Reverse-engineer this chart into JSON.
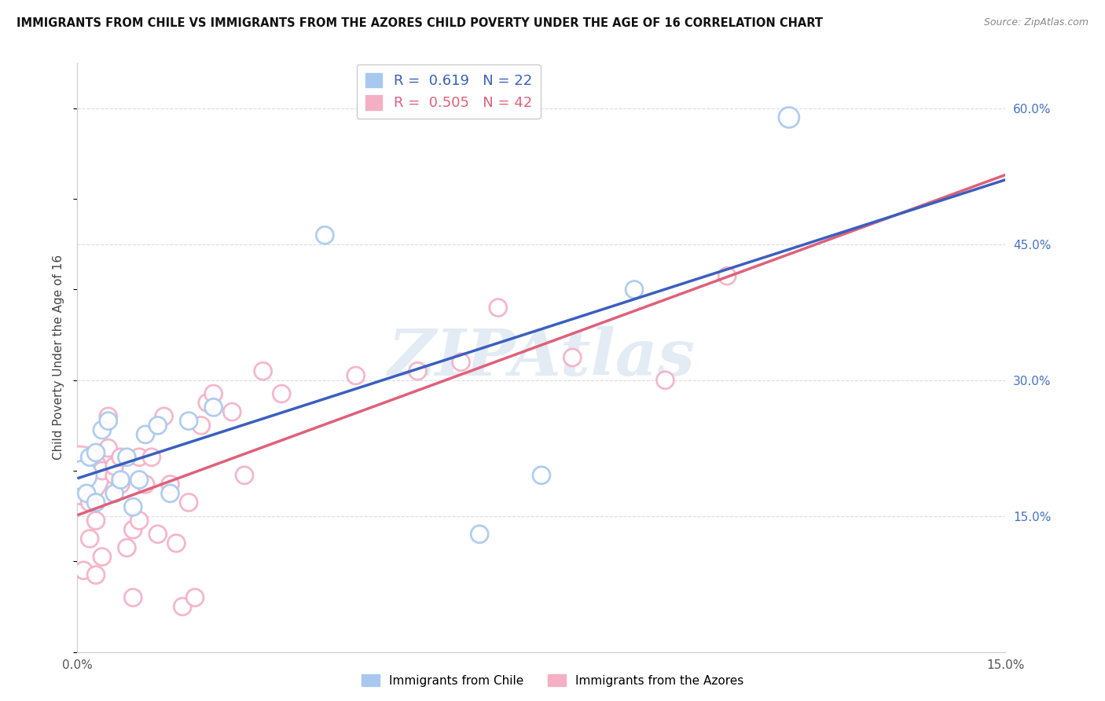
{
  "title": "IMMIGRANTS FROM CHILE VS IMMIGRANTS FROM THE AZORES CHILD POVERTY UNDER THE AGE OF 16 CORRELATION CHART",
  "source": "Source: ZipAtlas.com",
  "ylabel": "Child Poverty Under the Age of 16",
  "xlim": [
    0.0,
    0.15
  ],
  "ylim": [
    0.0,
    0.65
  ],
  "xtick_positions": [
    0.0,
    0.05,
    0.1,
    0.15
  ],
  "xticklabels": [
    "0.0%",
    "",
    "",
    "15.0%"
  ],
  "yticks_right": [
    0.0,
    0.15,
    0.3,
    0.45,
    0.6
  ],
  "yticklabels_right": [
    "",
    "15.0%",
    "30.0%",
    "45.0%",
    "60.0%"
  ],
  "chile_R": 0.619,
  "chile_N": 22,
  "azores_R": 0.505,
  "azores_N": 42,
  "chile_color": "#a8c8f0",
  "azores_color": "#f4afc5",
  "chile_edge_color": "#7baad4",
  "azores_edge_color": "#e888a8",
  "trendline_chile_color": "#3a5fbe",
  "trendline_azores_color": "#e0607a",
  "watermark_color": "#c8d8ec",
  "watermark": "ZIPAtlas",
  "chile_x": [
    0.0008,
    0.0015,
    0.002,
    0.003,
    0.003,
    0.004,
    0.005,
    0.006,
    0.007,
    0.008,
    0.009,
    0.01,
    0.011,
    0.013,
    0.015,
    0.018,
    0.022,
    0.04,
    0.065,
    0.075,
    0.09,
    0.115
  ],
  "chile_y": [
    0.195,
    0.175,
    0.215,
    0.165,
    0.22,
    0.245,
    0.255,
    0.175,
    0.19,
    0.215,
    0.16,
    0.19,
    0.24,
    0.25,
    0.175,
    0.255,
    0.27,
    0.46,
    0.13,
    0.195,
    0.4,
    0.59
  ],
  "chile_size": [
    700,
    250,
    250,
    250,
    250,
    250,
    250,
    250,
    250,
    250,
    250,
    250,
    250,
    250,
    250,
    250,
    250,
    250,
    250,
    250,
    250,
    350
  ],
  "azores_x": [
    0.0004,
    0.001,
    0.002,
    0.002,
    0.003,
    0.003,
    0.004,
    0.004,
    0.005,
    0.005,
    0.006,
    0.006,
    0.007,
    0.007,
    0.008,
    0.009,
    0.009,
    0.01,
    0.01,
    0.011,
    0.012,
    0.013,
    0.014,
    0.015,
    0.016,
    0.017,
    0.018,
    0.019,
    0.02,
    0.021,
    0.022,
    0.025,
    0.027,
    0.03,
    0.033,
    0.045,
    0.055,
    0.062,
    0.068,
    0.08,
    0.095,
    0.105
  ],
  "azores_y": [
    0.195,
    0.09,
    0.125,
    0.165,
    0.085,
    0.145,
    0.105,
    0.2,
    0.225,
    0.26,
    0.195,
    0.205,
    0.185,
    0.215,
    0.115,
    0.06,
    0.135,
    0.145,
    0.215,
    0.185,
    0.215,
    0.13,
    0.26,
    0.185,
    0.12,
    0.05,
    0.165,
    0.06,
    0.25,
    0.275,
    0.285,
    0.265,
    0.195,
    0.31,
    0.285,
    0.305,
    0.31,
    0.32,
    0.38,
    0.325,
    0.3,
    0.415
  ],
  "azores_size": [
    2800,
    250,
    250,
    250,
    250,
    250,
    250,
    250,
    250,
    250,
    250,
    250,
    250,
    250,
    250,
    250,
    250,
    250,
    250,
    250,
    250,
    250,
    250,
    250,
    250,
    250,
    250,
    250,
    250,
    250,
    250,
    250,
    250,
    250,
    250,
    250,
    250,
    250,
    250,
    250,
    250,
    250
  ]
}
